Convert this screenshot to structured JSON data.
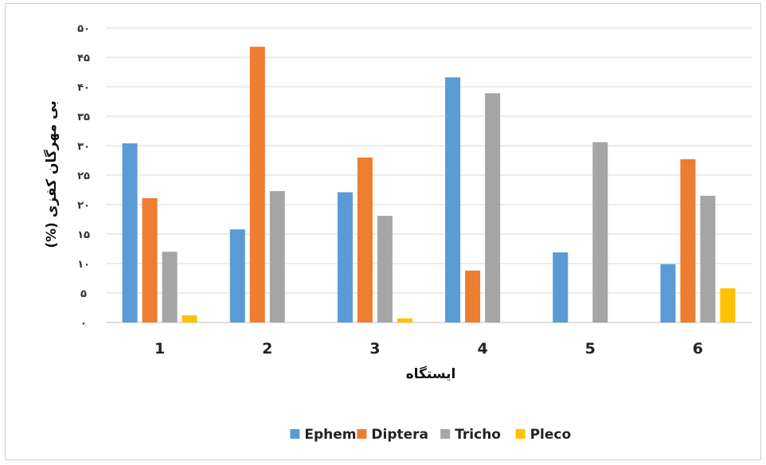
{
  "chart_data": {
    "type": "bar",
    "categories": [
      "1",
      "2",
      "3",
      "4",
      "5",
      "6"
    ],
    "series": [
      {
        "name": "Ephem",
        "color": "#5B9BD5",
        "values": [
          30.4,
          15.8,
          22.1,
          41.6,
          11.9,
          9.9
        ]
      },
      {
        "name": "Diptera",
        "color": "#ED7D31",
        "values": [
          21.1,
          46.8,
          28.0,
          8.8,
          0,
          27.7
        ]
      },
      {
        "name": "Tricho",
        "color": "#A5A5A5",
        "values": [
          12.0,
          22.3,
          18.1,
          38.9,
          30.6,
          21.5
        ]
      },
      {
        "name": "Pleco",
        "color": "#FFC000",
        "values": [
          1.2,
          0,
          0.7,
          0,
          0,
          5.8
        ]
      }
    ],
    "xlabel": "ایستگاه",
    "ylabel": "بی مهرگان کفزی (%)",
    "ylim": [
      0,
      50
    ],
    "yticks": [
      "۰",
      "۵",
      "۱۰",
      "۱۵",
      "۲۰",
      "۲۵",
      "۳۰",
      "۳۵",
      "۴۰",
      "۴۵",
      "۵۰"
    ],
    "grid": true,
    "legend_position": "bottom"
  }
}
